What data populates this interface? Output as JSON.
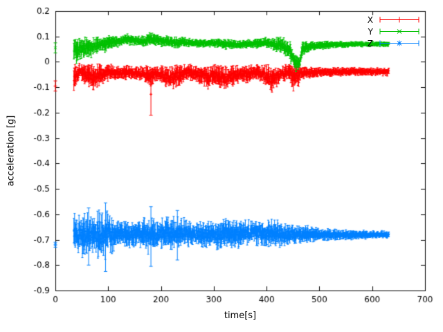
{
  "chart_data": {
    "type": "scatter",
    "style": "errorbars",
    "title": "",
    "xlabel": "time[s]",
    "ylabel": "acceleration [g]",
    "xlim": [
      0,
      700
    ],
    "ylim": [
      -0.9,
      0.2
    ],
    "grid": false,
    "background": "#ffffff",
    "xticks": {
      "values": [
        0,
        100,
        200,
        300,
        400,
        500,
        600,
        700
      ],
      "labels": [
        "0",
        "100",
        "200",
        "300",
        "400",
        "500",
        "600",
        "700"
      ]
    },
    "yticks": {
      "values": [
        0.2,
        0.1,
        0,
        -0.1,
        -0.2,
        -0.3,
        -0.4,
        -0.5,
        -0.6,
        -0.7,
        -0.8,
        -0.9
      ],
      "labels": [
        "0.2",
        "0.1",
        "0",
        "-0.1",
        "-0.2",
        "-0.3",
        "-0.4",
        "-0.5",
        "-0.6",
        "-0.7",
        "-0.8",
        "-0.9"
      ]
    },
    "legend": {
      "position": "top-right",
      "entries": [
        {
          "label": "X",
          "color": "#ff0000",
          "marker": "plus"
        },
        {
          "label": "Y",
          "color": "#00c000",
          "marker": "cross"
        },
        {
          "label": "Z",
          "color": "#0080ff",
          "marker": "asterisk"
        }
      ]
    },
    "series": [
      {
        "name": "X",
        "color": "#ff0000",
        "marker": "plus",
        "initial_point": {
          "t": 0,
          "value": -0.095,
          "err": 0.02
        },
        "band": {
          "t_start": 35,
          "t_end": 632,
          "envelope": [
            [
              35,
              -0.06,
              0.055
            ],
            [
              45,
              -0.035,
              0.03
            ],
            [
              60,
              -0.05,
              0.045
            ],
            [
              75,
              -0.06,
              0.05
            ],
            [
              85,
              -0.05,
              0.04
            ],
            [
              100,
              -0.04,
              0.03
            ],
            [
              120,
              -0.045,
              0.03
            ],
            [
              140,
              -0.04,
              0.025
            ],
            [
              160,
              -0.045,
              0.03
            ],
            [
              178,
              -0.055,
              0.04
            ],
            [
              195,
              -0.045,
              0.03
            ],
            [
              215,
              -0.06,
              0.045
            ],
            [
              232,
              -0.055,
              0.045
            ],
            [
              248,
              -0.04,
              0.03
            ],
            [
              262,
              -0.045,
              0.03
            ],
            [
              278,
              -0.05,
              0.035
            ],
            [
              292,
              -0.065,
              0.045
            ],
            [
              305,
              -0.05,
              0.04
            ],
            [
              320,
              -0.068,
              0.05
            ],
            [
              335,
              -0.055,
              0.04
            ],
            [
              350,
              -0.045,
              0.03
            ],
            [
              365,
              -0.05,
              0.035
            ],
            [
              380,
              -0.04,
              0.025
            ],
            [
              395,
              -0.05,
              0.04
            ],
            [
              410,
              -0.068,
              0.05
            ],
            [
              425,
              -0.05,
              0.035
            ],
            [
              440,
              -0.04,
              0.028
            ],
            [
              452,
              -0.06,
              0.055
            ],
            [
              468,
              -0.045,
              0.025
            ],
            [
              490,
              -0.04,
              0.02
            ],
            [
              520,
              -0.04,
              0.018
            ],
            [
              560,
              -0.038,
              0.015
            ],
            [
              632,
              -0.04,
              0.015
            ]
          ]
        },
        "outliers": [
          {
            "t": 181,
            "lo": -0.21,
            "hi": -0.045
          }
        ]
      },
      {
        "name": "Y",
        "color": "#00c000",
        "marker": "cross",
        "initial_point": {
          "t": 0,
          "value": 0.055,
          "err": 0.02
        },
        "band": {
          "t_start": 35,
          "t_end": 632,
          "envelope": [
            [
              35,
              0.05,
              0.055
            ],
            [
              45,
              0.05,
              0.045
            ],
            [
              60,
              0.055,
              0.04
            ],
            [
              75,
              0.06,
              0.035
            ],
            [
              90,
              0.07,
              0.03
            ],
            [
              105,
              0.075,
              0.025
            ],
            [
              120,
              0.08,
              0.02
            ],
            [
              135,
              0.09,
              0.02
            ],
            [
              150,
              0.085,
              0.02
            ],
            [
              165,
              0.08,
              0.02
            ],
            [
              180,
              0.09,
              0.025
            ],
            [
              195,
              0.085,
              0.02
            ],
            [
              210,
              0.08,
              0.02
            ],
            [
              225,
              0.075,
              0.02
            ],
            [
              240,
              0.08,
              0.018
            ],
            [
              260,
              0.075,
              0.015
            ],
            [
              280,
              0.072,
              0.015
            ],
            [
              300,
              0.075,
              0.015
            ],
            [
              320,
              0.07,
              0.018
            ],
            [
              340,
              0.068,
              0.015
            ],
            [
              360,
              0.07,
              0.015
            ],
            [
              380,
              0.072,
              0.018
            ],
            [
              400,
              0.075,
              0.02
            ],
            [
              415,
              0.07,
              0.025
            ],
            [
              430,
              0.065,
              0.03
            ],
            [
              445,
              0.04,
              0.04
            ],
            [
              455,
              0.0,
              0.035
            ],
            [
              462,
              -0.005,
              0.025
            ],
            [
              468,
              0.05,
              0.03
            ],
            [
              480,
              0.06,
              0.018
            ],
            [
              500,
              0.065,
              0.015
            ],
            [
              530,
              0.068,
              0.012
            ],
            [
              570,
              0.07,
              0.01
            ],
            [
              632,
              0.07,
              0.01
            ]
          ]
        },
        "outliers": []
      },
      {
        "name": "Z",
        "color": "#0080ff",
        "marker": "asterisk",
        "initial_point": {
          "t": 0,
          "value": -0.72,
          "err": 0.01
        },
        "band": {
          "t_start": 35,
          "t_end": 632,
          "envelope": [
            [
              35,
              -0.68,
              0.075
            ],
            [
              45,
              -0.685,
              0.08
            ],
            [
              55,
              -0.68,
              0.085
            ],
            [
              70,
              -0.675,
              0.07
            ],
            [
              85,
              -0.68,
              0.09
            ],
            [
              95,
              -0.68,
              0.095
            ],
            [
              110,
              -0.68,
              0.06
            ],
            [
              125,
              -0.675,
              0.05
            ],
            [
              140,
              -0.68,
              0.05
            ],
            [
              155,
              -0.675,
              0.05
            ],
            [
              170,
              -0.68,
              0.06
            ],
            [
              182,
              -0.68,
              0.075
            ],
            [
              195,
              -0.675,
              0.055
            ],
            [
              210,
              -0.67,
              0.06
            ],
            [
              225,
              -0.675,
              0.06
            ],
            [
              240,
              -0.67,
              0.055
            ],
            [
              255,
              -0.675,
              0.05
            ],
            [
              270,
              -0.68,
              0.05
            ],
            [
              285,
              -0.675,
              0.05
            ],
            [
              300,
              -0.68,
              0.055
            ],
            [
              315,
              -0.68,
              0.06
            ],
            [
              330,
              -0.675,
              0.05
            ],
            [
              345,
              -0.68,
              0.05
            ],
            [
              360,
              -0.675,
              0.045
            ],
            [
              375,
              -0.67,
              0.045
            ],
            [
              390,
              -0.675,
              0.05
            ],
            [
              405,
              -0.68,
              0.05
            ],
            [
              420,
              -0.675,
              0.055
            ],
            [
              435,
              -0.68,
              0.045
            ],
            [
              450,
              -0.68,
              0.04
            ],
            [
              465,
              -0.68,
              0.035
            ],
            [
              480,
              -0.68,
              0.03
            ],
            [
              500,
              -0.68,
              0.025
            ],
            [
              530,
              -0.68,
              0.022
            ],
            [
              560,
              -0.682,
              0.018
            ],
            [
              600,
              -0.68,
              0.015
            ],
            [
              632,
              -0.68,
              0.013
            ]
          ]
        },
        "outliers": [
          {
            "t": 63,
            "lo": -0.8,
            "hi": -0.575
          },
          {
            "t": 95,
            "lo": -0.825,
            "hi": -0.555
          },
          {
            "t": 181,
            "lo": -0.805,
            "hi": -0.57
          },
          {
            "t": 231,
            "lo": -0.78,
            "hi": -0.585
          }
        ]
      }
    ]
  }
}
